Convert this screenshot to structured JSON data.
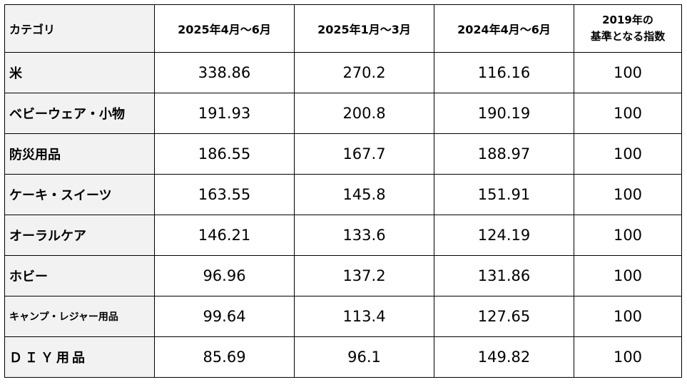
{
  "table": {
    "headers": {
      "category": "カテゴリ",
      "col1": "2025年4月～6月",
      "col2": "2025年1月～3月",
      "col3": "2024年4月～6月",
      "col4_line1": "2019年の",
      "col4_line2": "基準となる指数"
    },
    "rows": [
      {
        "category": "米",
        "v1": "338.86",
        "v2": "270.2",
        "v3": "116.16",
        "v4": "100"
      },
      {
        "category": "ベビーウェア・小物",
        "v1": "191.93",
        "v2": "200.8",
        "v3": "190.19",
        "v4": "100"
      },
      {
        "category": "防災用品",
        "v1": "186.55",
        "v2": "167.7",
        "v3": "188.97",
        "v4": "100"
      },
      {
        "category": "ケーキ・スイーツ",
        "v1": "163.55",
        "v2": "145.8",
        "v3": "151.91",
        "v4": "100"
      },
      {
        "category": "オーラルケア",
        "v1": "146.21",
        "v2": "133.6",
        "v3": "124.19",
        "v4": "100"
      },
      {
        "category": "ホビー",
        "v1": "96.96",
        "v2": "137.2",
        "v3": "131.86",
        "v4": "100"
      },
      {
        "category": "キャンプ・レジャー用品",
        "v1": "99.64",
        "v2": "113.4",
        "v3": "127.65",
        "v4": "100"
      },
      {
        "category": "ＤＩＹ用品",
        "v1": "85.69",
        "v2": "96.1",
        "v3": "149.82",
        "v4": "100"
      }
    ]
  }
}
